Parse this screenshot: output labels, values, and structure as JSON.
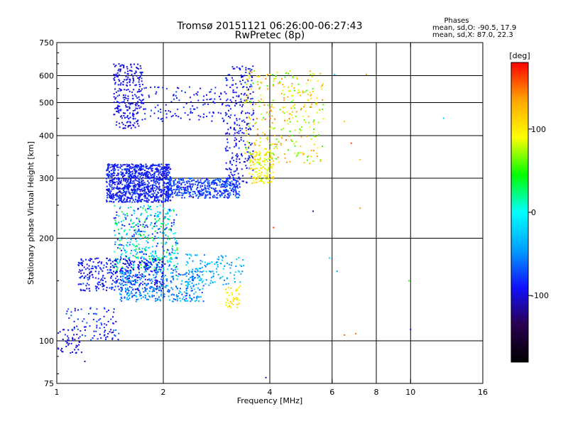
{
  "header": {
    "title_line1": "Tromsø 20151121 06:26:00-06:27:43",
    "title_line2": "RwPretec (8p)",
    "phase_title": "Phases",
    "phase_o": "mean, sd,O: -90.5, 17.9",
    "phase_x": "mean, sd,X:  87.0, 22.3"
  },
  "chart_data": {
    "type": "scatter",
    "xlabel": "Frequency [MHz]",
    "ylabel": "Stationary phase Virtual Height [km]",
    "xscale": "log",
    "yscale": "log",
    "xlim": [
      1,
      16
    ],
    "ylim": [
      75,
      750
    ],
    "x_ticks": [
      "1",
      "2",
      "4",
      "6",
      "8",
      "10",
      "16"
    ],
    "x_tick_values": [
      1,
      2,
      4,
      6,
      8,
      10,
      16
    ],
    "y_ticks": [
      "75",
      "100",
      "200",
      "300",
      "400",
      "500",
      "600",
      "750"
    ],
    "y_tick_values": [
      75,
      100,
      200,
      300,
      400,
      500,
      600,
      750
    ],
    "x_gridlines": [
      2,
      4,
      6,
      8,
      10
    ],
    "y_gridlines": [
      100,
      200,
      300,
      400,
      500,
      600
    ],
    "grid": true,
    "color_scale": {
      "label": "[deg]",
      "ticks": [
        "100",
        "0",
        "-100"
      ],
      "tick_values": [
        100,
        0,
        -100
      ],
      "range": [
        -180,
        180
      ]
    },
    "clusters": [
      {
        "x": [
          1.38,
          2.1
        ],
        "y": [
          255,
          330
        ],
        "phase": [
          -105,
          -70
        ],
        "count": 950
      },
      {
        "x": [
          2.05,
          3.3
        ],
        "y": [
          262,
          300
        ],
        "phase": [
          -95,
          -55
        ],
        "count": 420
      },
      {
        "x": [
          3.0,
          3.6
        ],
        "y": [
          290,
          640
        ],
        "phase": [
          -110,
          -75
        ],
        "count": 260
      },
      {
        "x": [
          3.5,
          4.1
        ],
        "y": [
          290,
          360
        ],
        "phase": [
          75,
          120
        ],
        "count": 130
      },
      {
        "x": [
          3.4,
          5.7
        ],
        "y": [
          330,
          620
        ],
        "phase": [
          50,
          150
        ],
        "count": 310
      },
      {
        "x": [
          1.45,
          1.75
        ],
        "y": [
          420,
          650
        ],
        "phase": [
          -110,
          -80
        ],
        "count": 260
      },
      {
        "x": [
          1.75,
          3.0
        ],
        "y": [
          440,
          560
        ],
        "phase": [
          -105,
          -70
        ],
        "count": 120
      },
      {
        "x": [
          1.45,
          2.2
        ],
        "y": [
          160,
          250
        ],
        "phase": [
          -100,
          50
        ],
        "count": 450
      },
      {
        "x": [
          1.15,
          2.0
        ],
        "y": [
          140,
          175
        ],
        "phase": [
          -110,
          -70
        ],
        "count": 380
      },
      {
        "x": [
          1.5,
          2.6
        ],
        "y": [
          130,
          160
        ],
        "phase": [
          -80,
          -20
        ],
        "count": 330
      },
      {
        "x": [
          2.3,
          3.4
        ],
        "y": [
          145,
          180
        ],
        "phase": [
          -60,
          -10
        ],
        "count": 120
      },
      {
        "x": [
          1.05,
          1.5
        ],
        "y": [
          100,
          125
        ],
        "phase": [
          -110,
          -60
        ],
        "count": 90
      },
      {
        "x": [
          1.0,
          1.2
        ],
        "y": [
          92,
          108
        ],
        "phase": [
          -115,
          -90
        ],
        "count": 45
      },
      {
        "x": [
          3.0,
          3.3
        ],
        "y": [
          125,
          145
        ],
        "phase": [
          80,
          120
        ],
        "count": 40
      }
    ],
    "outliers": [
      {
        "x": 6.1,
        "y": 605,
        "phase": -30
      },
      {
        "x": 7.5,
        "y": 605,
        "phase": 140
      },
      {
        "x": 6.5,
        "y": 440,
        "phase": 120
      },
      {
        "x": 6.8,
        "y": 380,
        "phase": 160
      },
      {
        "x": 7.2,
        "y": 340,
        "phase": 120
      },
      {
        "x": 12.4,
        "y": 450,
        "phase": -20
      },
      {
        "x": 5.3,
        "y": 240,
        "phase": -110
      },
      {
        "x": 5.9,
        "y": 175,
        "phase": -20
      },
      {
        "x": 6.2,
        "y": 160,
        "phase": -40
      },
      {
        "x": 9.9,
        "y": 150,
        "phase": 50
      },
      {
        "x": 10.0,
        "y": 108,
        "phase": -110
      },
      {
        "x": 6.5,
        "y": 104,
        "phase": 150
      },
      {
        "x": 7.0,
        "y": 105,
        "phase": 150
      },
      {
        "x": 4.1,
        "y": 215,
        "phase": 165
      },
      {
        "x": 3.9,
        "y": 78,
        "phase": -110
      },
      {
        "x": 1.2,
        "y": 87,
        "phase": -110
      },
      {
        "x": 7.2,
        "y": 245,
        "phase": 140
      }
    ]
  },
  "colors": {
    "background": "#ffffff",
    "axes": "#000000",
    "grid": "#000000",
    "colorbar_stops": [
      "#000000",
      "#2a0050",
      "#1010ff",
      "#00a0ff",
      "#00ffff",
      "#00ff00",
      "#ffff00",
      "#ffa500",
      "#ff0000"
    ]
  }
}
